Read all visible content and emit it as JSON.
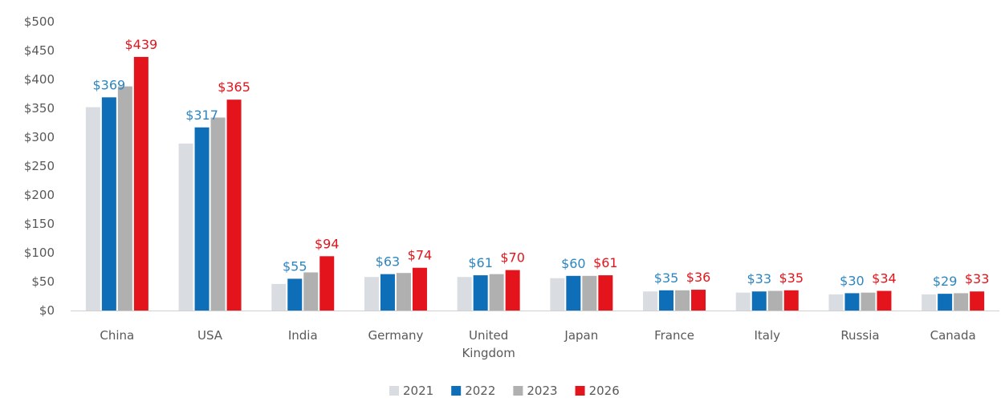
{
  "chart_data": {
    "type": "bar",
    "categories": [
      "China",
      "USA",
      "India",
      "Germany",
      "United Kingdom",
      "Japan",
      "France",
      "Italy",
      "Russia",
      "Canada"
    ],
    "category_lines": [
      [
        "China"
      ],
      [
        "USA"
      ],
      [
        "India"
      ],
      [
        "Germany"
      ],
      [
        "United",
        "Kingdom"
      ],
      [
        "Japan"
      ],
      [
        "France"
      ],
      [
        "Italy"
      ],
      [
        "Russia"
      ],
      [
        "Canada"
      ]
    ],
    "series": [
      {
        "name": "2021",
        "color": "#d9dde1",
        "values": [
          352,
          289,
          46,
          58,
          58,
          56,
          33,
          31,
          28,
          28
        ]
      },
      {
        "name": "2022",
        "color": "#0e6eb8",
        "values": [
          369,
          317,
          55,
          63,
          61,
          60,
          35,
          33,
          30,
          29
        ]
      },
      {
        "name": "2023",
        "color": "#b0b0b0",
        "values": [
          388,
          334,
          66,
          65,
          63,
          60,
          35,
          34,
          31,
          30
        ]
      },
      {
        "name": "2026",
        "color": "#e3141b",
        "values": [
          439,
          365,
          94,
          74,
          70,
          61,
          36,
          35,
          34,
          33
        ]
      }
    ],
    "data_labels": [
      {
        "series": 1,
        "labels": [
          "$369",
          "$317",
          "$55",
          "$63",
          "$61",
          "$60",
          "$35",
          "$33",
          "$30",
          "$29"
        ],
        "color": "#2e86c1"
      },
      {
        "series": 3,
        "labels": [
          "$439",
          "$365",
          "$94",
          "$74",
          "$70",
          "$61",
          "$36",
          "$35",
          "$34",
          "$33"
        ],
        "color": "#e3141b"
      }
    ],
    "ylim": [
      0,
      500
    ],
    "y_ticks": [
      0,
      50,
      100,
      150,
      200,
      250,
      300,
      350,
      400,
      450,
      500
    ],
    "y_tick_labels": [
      "$0",
      "$50",
      "$100",
      "$150",
      "$200",
      "$250",
      "$300",
      "$350",
      "$400",
      "$450",
      "$500"
    ],
    "grid": false,
    "legend_position": "bottom-center",
    "title": "",
    "xlabel": "",
    "ylabel": ""
  }
}
